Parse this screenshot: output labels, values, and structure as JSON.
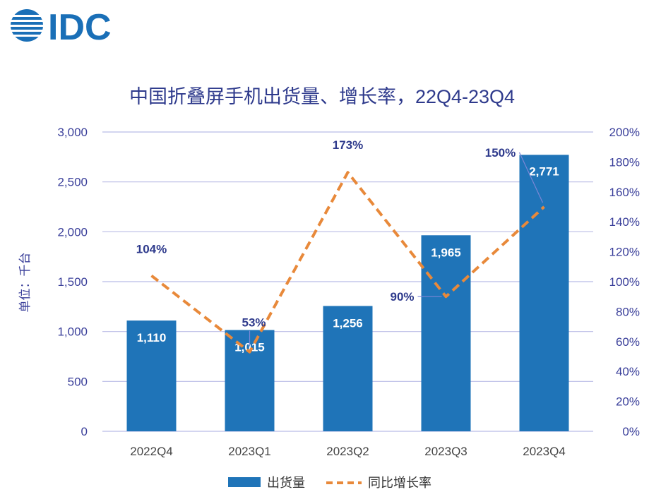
{
  "logo": {
    "text": "IDC",
    "color": "#1a6fb7"
  },
  "chart_data": {
    "type": "bar",
    "title": "中国折叠屏手机出货量、增长率，22Q4-23Q4",
    "ylabel": "单位：千台",
    "categories": [
      "2022Q4",
      "2023Q1",
      "2023Q2",
      "2023Q3",
      "2023Q4"
    ],
    "ylim": [
      0,
      3000
    ],
    "y_ticks": [
      "0",
      "500",
      "1,000",
      "1,500",
      "2,000",
      "2,500",
      "3,000"
    ],
    "y2lim": [
      0,
      200
    ],
    "y2_ticks": [
      "0%",
      "20%",
      "40%",
      "60%",
      "80%",
      "100%",
      "120%",
      "140%",
      "160%",
      "180%",
      "200%"
    ],
    "grid": true,
    "legend_position": "bottom",
    "series": [
      {
        "name": "出货量",
        "type": "bar",
        "axis": "left",
        "color": "#1f74b8",
        "values": [
          1110,
          1015,
          1256,
          1965,
          2771
        ],
        "labels": [
          "1,110",
          "1,015",
          "1,256",
          "1,965",
          "2,771"
        ]
      },
      {
        "name": "同比增长率",
        "type": "line",
        "axis": "right",
        "color": "#e8893a",
        "line_style": "dashed",
        "values": [
          104,
          53,
          173,
          90,
          150
        ],
        "labels": [
          "104%",
          "53%",
          "173%",
          "90%",
          "150%"
        ]
      }
    ]
  },
  "colors": {
    "title": "#2e3a8c",
    "axis_text": "#3a3f9a",
    "grid": "#b9bce6",
    "category_text": "#444444"
  }
}
